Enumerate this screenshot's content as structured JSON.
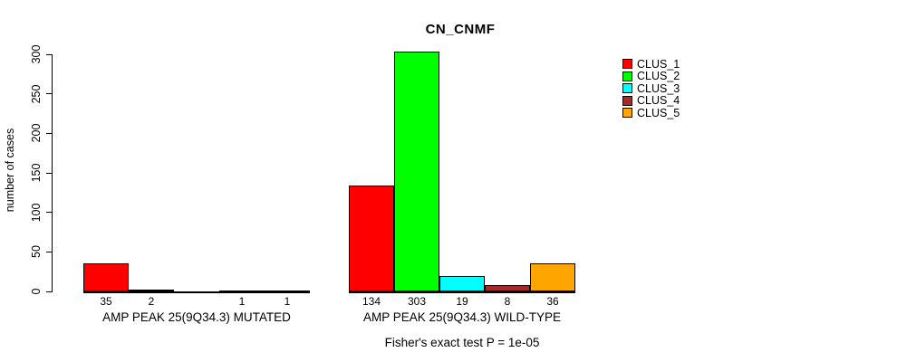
{
  "chart_data": {
    "type": "bar",
    "title": "CN_CNMF",
    "ylabel": "number of cases",
    "xlabel": "",
    "ylim": [
      0,
      300
    ],
    "yticks": [
      0,
      50,
      100,
      150,
      200,
      250,
      300
    ],
    "grid": false,
    "legend_position": "right",
    "legend": [
      {
        "name": "CLUS_1",
        "color": "#FF0000"
      },
      {
        "name": "CLUS_2",
        "color": "#00FF00"
      },
      {
        "name": "CLUS_3",
        "color": "#00FFFF"
      },
      {
        "name": "CLUS_4",
        "color": "#A52A2A"
      },
      {
        "name": "CLUS_5",
        "color": "#FFA500"
      }
    ],
    "groups": [
      {
        "label": "AMP PEAK 25(9Q34.3) MUTATED",
        "values": [
          35,
          2,
          0,
          1,
          1
        ],
        "value_labels": [
          "35",
          "2",
          "",
          "1",
          "1"
        ]
      },
      {
        "label": "AMP PEAK 25(9Q34.3) WILD-TYPE",
        "values": [
          134,
          303,
          19,
          8,
          36
        ],
        "value_labels": [
          "134",
          "303",
          "19",
          "8",
          "36"
        ]
      }
    ],
    "footnote": "Fisher's exact test P = 1e-05"
  }
}
